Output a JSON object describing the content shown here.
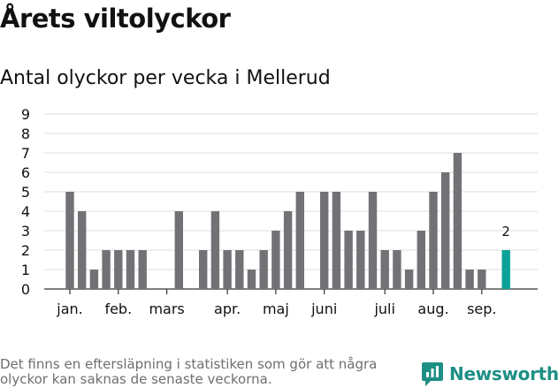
{
  "title": "Årets viltolyckor",
  "subtitle": "Antal olyckor per vecka i Mellerud",
  "footnote": "Det finns en eftersläpning i statistiken som gör att några olyckor kan saknas de senaste veckorna.",
  "brand": {
    "name": "Newsworthy"
  },
  "chart_data": {
    "type": "bar",
    "y_ticks": [
      "0",
      "1",
      "2",
      "3",
      "4",
      "5",
      "6",
      "7",
      "8",
      "9"
    ],
    "ylim": [
      0,
      9
    ],
    "grid": true,
    "x_ticks": [
      {
        "label": "jan.",
        "week": 1
      },
      {
        "label": "feb.",
        "week": 5
      },
      {
        "label": "mars",
        "week": 9
      },
      {
        "label": "apr.",
        "week": 14
      },
      {
        "label": "maj",
        "week": 18
      },
      {
        "label": "juni",
        "week": 22
      },
      {
        "label": "juli",
        "week": 27
      },
      {
        "label": "aug.",
        "week": 31
      },
      {
        "label": "sep.",
        "week": 35
      }
    ],
    "weeks": [
      1,
      2,
      3,
      4,
      5,
      6,
      7,
      8,
      9,
      10,
      11,
      12,
      13,
      14,
      15,
      16,
      17,
      18,
      19,
      20,
      21,
      22,
      23,
      24,
      25,
      26,
      27,
      28,
      29,
      30,
      31,
      32,
      33,
      34,
      35,
      36,
      37
    ],
    "values": [
      5,
      4,
      1,
      2,
      2,
      2,
      2,
      0,
      0,
      4,
      0,
      2,
      4,
      2,
      2,
      1,
      2,
      3,
      4,
      5,
      0,
      5,
      5,
      3,
      3,
      5,
      2,
      2,
      1,
      3,
      5,
      6,
      7,
      1,
      1,
      0,
      2
    ],
    "highlight_index": 36,
    "highlight_label": "2",
    "colors": {
      "bar": "#727276",
      "highlight": "#0ba29a",
      "grid": "#dddddd",
      "axis": "#333333"
    }
  }
}
